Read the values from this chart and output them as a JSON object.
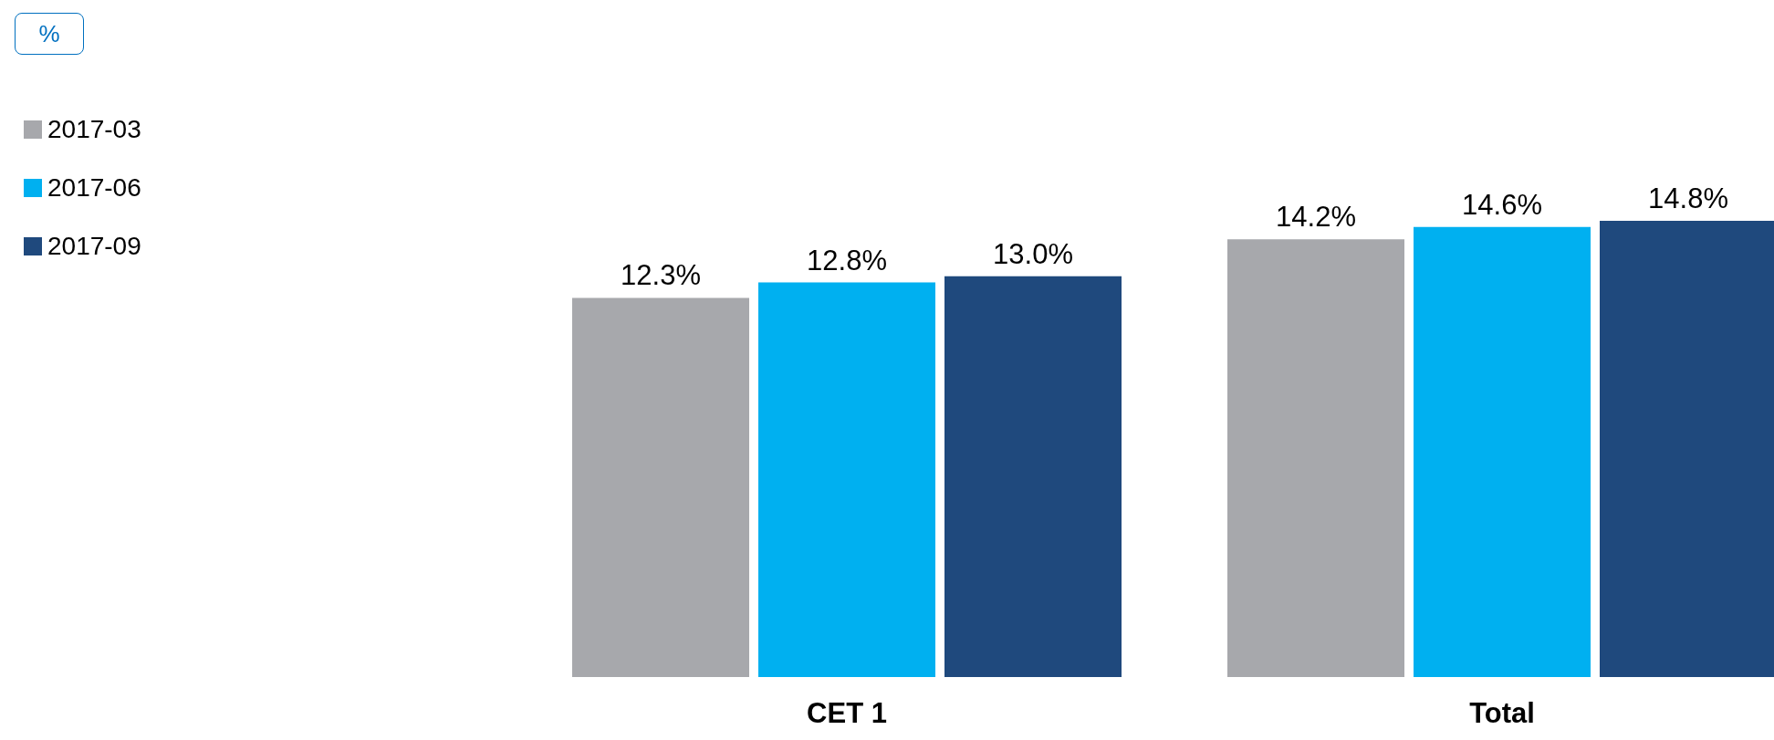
{
  "chart_data": {
    "type": "bar",
    "annotations": [
      "%"
    ],
    "categories": [
      "CET 1",
      "Total"
    ],
    "series": [
      {
        "name": "2017-03",
        "color": "#a7a8ac",
        "values": [
          12.3,
          14.2
        ],
        "value_labels": [
          "12.3%",
          "14.2%"
        ]
      },
      {
        "name": "2017-06",
        "color": "#00b0f0",
        "values": [
          12.8,
          14.6
        ],
        "value_labels": [
          "12.8%",
          "14.6%"
        ]
      },
      {
        "name": "2017-09",
        "color": "#1f497d",
        "values": [
          13.0,
          14.8
        ],
        "value_labels": [
          "13.0%",
          "14.8%"
        ]
      }
    ],
    "legend": "top left",
    "grid": false
  }
}
